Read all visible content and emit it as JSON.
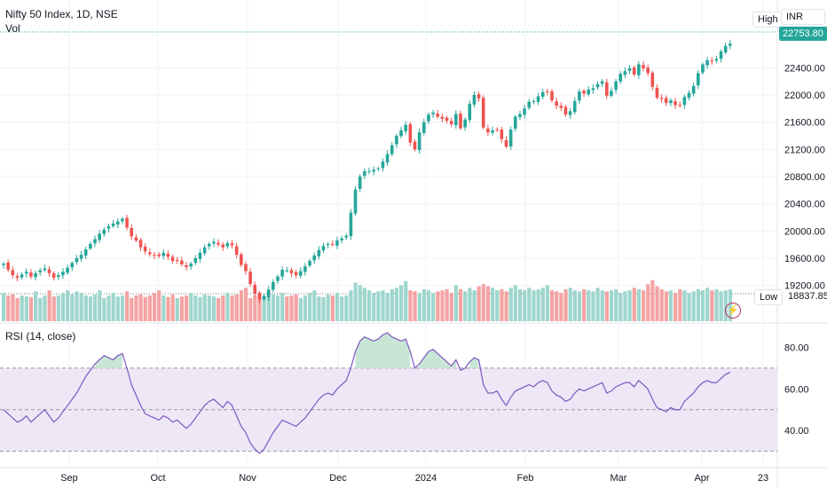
{
  "header": {
    "symbol": "Nifty 50 Index, 1D, NSE",
    "volume_label": "Vol",
    "rsi_label": "RSI (14, close)"
  },
  "buttons": {
    "high": "High",
    "currency": "INR",
    "low": "Low"
  },
  "price_badge": {
    "last": "22753.80",
    "low": "18837.85"
  },
  "colors": {
    "up": "#26a69a",
    "down": "#ef5350",
    "vol_up": "#9fd6ce",
    "vol_down": "#f5a3a3",
    "rsi_line": "#7e57c2",
    "rsi_band": "#ede7f6",
    "rsi_fill": "#c8e6d6",
    "grid": "#f0f3fa"
  },
  "icons": {
    "alert": "lightning-icon"
  },
  "chart_data": {
    "type": "candlestick",
    "price_axis": {
      "ylim": [
        18700,
        22900
      ],
      "ticks": [
        "22400.00",
        "22000.00",
        "21600.00",
        "21200.00",
        "20800.00",
        "20400.00",
        "20000.00",
        "19600.00",
        "19200.00"
      ]
    },
    "rsi_axis": {
      "ylim": [
        23,
        90
      ],
      "ticks": [
        "80.00",
        "60.00",
        "40.00"
      ],
      "bands": [
        70,
        50,
        30
      ]
    },
    "x_labels": [
      "Sep",
      "Oct",
      "Nov",
      "Dec",
      "2024",
      "Feb",
      "Mar",
      "Apr",
      "23"
    ],
    "candles_close": [
      19520,
      19430,
      19350,
      19310,
      19360,
      19400,
      19330,
      19380,
      19420,
      19450,
      19380,
      19310,
      19350,
      19400,
      19460,
      19530,
      19600,
      19650,
      19730,
      19810,
      19880,
      19960,
      20020,
      20070,
      20110,
      20140,
      20180,
      20050,
      19920,
      19860,
      19760,
      19700,
      19660,
      19640,
      19630,
      19680,
      19620,
      19560,
      19570,
      19510,
      19470,
      19520,
      19600,
      19680,
      19760,
      19810,
      19840,
      19800,
      19760,
      19820,
      19790,
      19650,
      19500,
      19410,
      19220,
      19080,
      18990,
      19040,
      19140,
      19250,
      19330,
      19430,
      19420,
      19380,
      19350,
      19410,
      19480,
      19560,
      19640,
      19720,
      19780,
      19810,
      19800,
      19860,
      19890,
      19930,
      20270,
      20610,
      20800,
      20880,
      20880,
      20900,
      20920,
      21020,
      21130,
      21260,
      21400,
      21480,
      21560,
      21300,
      21200,
      21450,
      21600,
      21710,
      21740,
      21680,
      21650,
      21620,
      21570,
      21720,
      21510,
      21640,
      21870,
      22000,
      21950,
      21520,
      21450,
      21480,
      21490,
      21350,
      21240,
      21490,
      21680,
      21720,
      21800,
      21900,
      21910,
      21980,
      22040,
      22050,
      21920,
      21840,
      21810,
      21710,
      21760,
      21910,
      22050,
      22020,
      22080,
      22100,
      22160,
      22200,
      21990,
      22060,
      22200,
      22310,
      22350,
      22390,
      22300,
      22450,
      22390,
      22320,
      22120,
      21960,
      21940,
      21880,
      21920,
      21850,
      21840,
      21970,
      22030,
      22130,
      22320,
      22450,
      22510,
      22490,
      22530,
      22640,
      22720,
      22754
    ],
    "volume": [
      0.55,
      0.5,
      0.52,
      0.45,
      0.5,
      0.48,
      0.47,
      0.58,
      0.45,
      0.5,
      0.6,
      0.48,
      0.5,
      0.55,
      0.6,
      0.52,
      0.58,
      0.55,
      0.5,
      0.48,
      0.52,
      0.6,
      0.45,
      0.5,
      0.55,
      0.48,
      0.5,
      0.58,
      0.45,
      0.5,
      0.52,
      0.47,
      0.5,
      0.55,
      0.6,
      0.5,
      0.47,
      0.52,
      0.45,
      0.48,
      0.5,
      0.55,
      0.5,
      0.47,
      0.52,
      0.5,
      0.48,
      0.45,
      0.5,
      0.55,
      0.5,
      0.52,
      0.6,
      0.65,
      0.45,
      0.5,
      0.55,
      0.5,
      0.47,
      0.52,
      0.5,
      0.55,
      0.48,
      0.5,
      0.52,
      0.45,
      0.5,
      0.55,
      0.6,
      0.48,
      0.47,
      0.52,
      0.5,
      0.55,
      0.48,
      0.5,
      0.6,
      0.75,
      0.7,
      0.65,
      0.6,
      0.55,
      0.58,
      0.6,
      0.55,
      0.62,
      0.65,
      0.7,
      0.78,
      0.6,
      0.58,
      0.55,
      0.62,
      0.6,
      0.55,
      0.58,
      0.6,
      0.62,
      0.55,
      0.7,
      0.62,
      0.58,
      0.65,
      0.6,
      0.68,
      0.72,
      0.68,
      0.65,
      0.6,
      0.62,
      0.58,
      0.65,
      0.7,
      0.62,
      0.6,
      0.65,
      0.6,
      0.62,
      0.65,
      0.7,
      0.6,
      0.58,
      0.55,
      0.62,
      0.65,
      0.6,
      0.58,
      0.62,
      0.6,
      0.58,
      0.65,
      0.6,
      0.58,
      0.6,
      0.62,
      0.55,
      0.58,
      0.6,
      0.65,
      0.62,
      0.6,
      0.72,
      0.8,
      0.68,
      0.62,
      0.58,
      0.6,
      0.55,
      0.62,
      0.6,
      0.55,
      0.58,
      0.62,
      0.6,
      0.65,
      0.6,
      0.62,
      0.58,
      0.6,
      0.62
    ],
    "rsi": [
      50,
      48,
      46,
      44,
      45,
      47,
      44,
      46,
      48,
      50,
      47,
      44,
      46,
      49,
      52,
      55,
      58,
      62,
      66,
      69,
      72,
      74,
      76,
      75,
      74,
      76,
      77,
      70,
      62,
      57,
      52,
      48,
      47,
      46,
      45,
      47,
      46,
      44,
      45,
      43,
      41,
      43,
      46,
      49,
      52,
      54,
      55,
      53,
      51,
      54,
      52,
      47,
      42,
      39,
      34,
      31,
      29,
      31,
      35,
      39,
      42,
      45,
      44,
      43,
      42,
      44,
      46,
      49,
      52,
      55,
      57,
      58,
      57,
      60,
      62,
      64,
      70,
      78,
      83,
      85,
      84,
      83,
      84,
      86,
      87,
      85,
      84,
      83,
      84,
      78,
      70,
      72,
      75,
      78,
      79,
      77,
      75,
      73,
      71,
      74,
      69,
      70,
      73,
      75,
      74,
      62,
      58,
      58,
      59,
      55,
      52,
      56,
      59,
      60,
      61,
      62,
      61,
      63,
      64,
      63,
      59,
      57,
      56,
      54,
      55,
      58,
      60,
      59,
      60,
      61,
      62,
      63,
      58,
      59,
      61,
      62,
      63,
      63,
      61,
      64,
      62,
      60,
      55,
      51,
      50,
      49,
      51,
      50,
      50,
      54,
      56,
      58,
      61,
      63,
      64,
      63,
      63,
      65,
      67,
      68
    ]
  }
}
